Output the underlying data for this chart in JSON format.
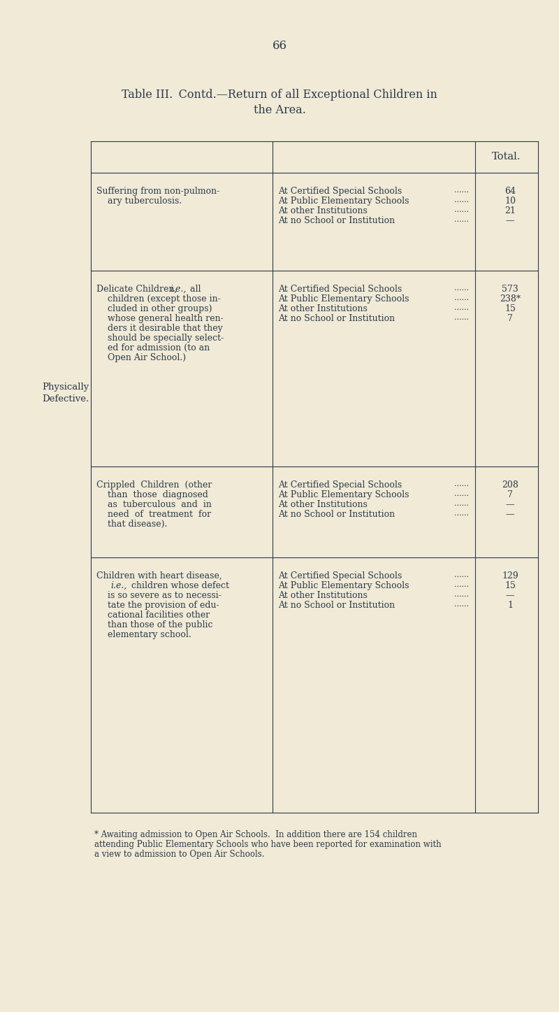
{
  "bg_color": "#f0ead6",
  "text_color": "#2b3a4a",
  "page_number": "66",
  "title_line1": "Table III.  Contd.—Return of all Exceptional Children in",
  "title_line2": "the Area.",
  "col0_header": "",
  "col1_header": "",
  "col2_header": "",
  "col3_header": "Total.",
  "left_label": "Physically\nDefective.",
  "rows": [
    {
      "col0": "",
      "col1_main": "Suffering from non-pulmon-\n    ary tuberculosis.",
      "col1_italic": "",
      "col2_lines": [
        "At Certified Special Schools",
        "At Public Elementary Schools",
        "At other Institutions",
        "At no School or Institution"
      ],
      "col3_lines": [
        "64",
        "10",
        "21",
        "—"
      ],
      "row_group": 0
    },
    {
      "col0": "",
      "col1_main": "Delicate Children,  i.e.,  all\n    children (except those in-\n    cluded in other groups)\n    whose general health ren-\n    ders it desirable that they\n    should be specially select-\n    ed for admission (to an\n    Open Air School.)",
      "col1_italic": "i.e.,",
      "col2_lines": [
        "At Certified Special Schools",
        "At Public Elementary Schools",
        "At other Institutions",
        "At no School or Institution"
      ],
      "col3_lines": [
        "573",
        "238*",
        "15",
        "7"
      ],
      "row_group": 1
    },
    {
      "col0": "Physically\nDefective.",
      "col1_main": "Crippled  Children  (other\n    than  those  diagnosed\n    as  tuberculous  and  in\n    need  of  treatment  for\n    that disease).",
      "col1_italic": "",
      "col2_lines": [
        "At Certified Special Schools",
        "At Public Elementary Schools",
        "At other Institutions",
        "At no School or Institution"
      ],
      "col3_lines": [
        "208",
        "7",
        "—",
        "—"
      ],
      "row_group": 2
    },
    {
      "col0": "",
      "col1_main": "Children with heart disease,\n     i.e.,  children whose defect\n    is so severe as to necessi-\n    tate the provision of edu-\n    cational facilities other\n    than those of the public\n    elementary school.",
      "col1_italic": "i.e.,",
      "col2_lines": [
        "At Certified Special Schools",
        "At Public Elementary Schools",
        "At other Institutions",
        "At no School or Institution"
      ],
      "col3_lines": [
        "129",
        "15",
        "—",
        "1"
      ],
      "row_group": 3
    }
  ],
  "footnote": "* Awaiting admission to Open Air Schools.  In addition there are 154 children\nattending Public Elementary Schools who have been reported for examination with\na view to admission to Open Air Schools."
}
